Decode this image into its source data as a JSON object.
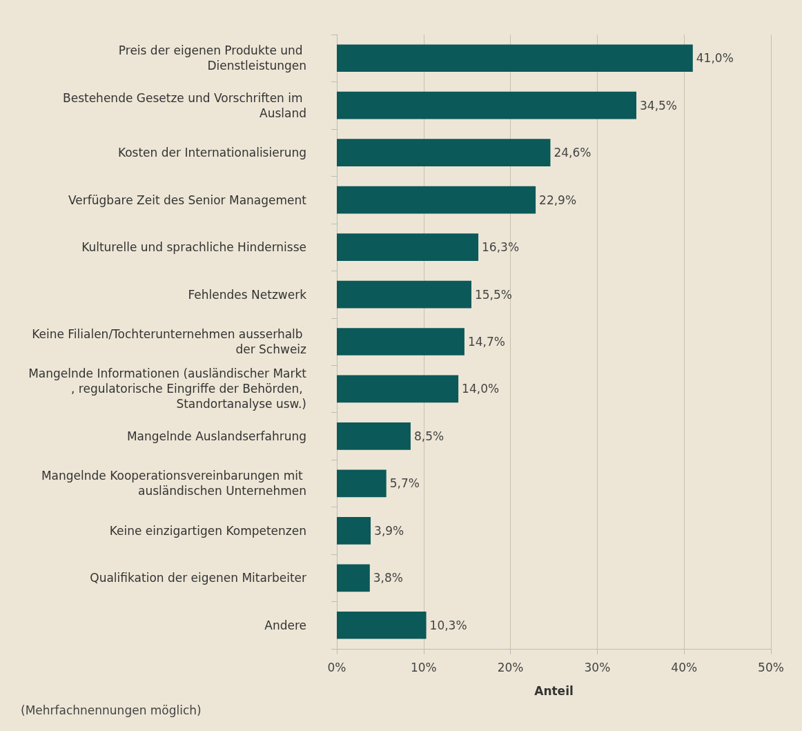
{
  "chart_data": {
    "type": "bar",
    "orientation": "horizontal",
    "xlabel": "Anteil",
    "annotations": [
      "(Mehrfachnennungen möglich)"
    ],
    "categories": [
      "Preis der eigenen Produkte und Dienstleistungen",
      "Bestehende Gesetze und Vorschriften im Ausland",
      "Kosten der Internationalisierung",
      "Verfügbare Zeit des Senior Management",
      "Kulturelle und sprachliche Hindernisse",
      "Fehlendes Netzwerk",
      "Keine Filialen/Tochterunternehmen ausserhalb der Schweiz",
      "Mangelnde Informationen (ausländischer Markt, regulatorische Eingriffe der Behörden, Standortanalyse usw.)",
      "Mangelnde Auslandserfahrung",
      "Mangelnde Kooperationsvereinbarungen mit ausländischen Unternehmen",
      "Keine einzigartigen Kompetenzen",
      "Qualifikation der eigenen Mitarbeiter",
      "Andere"
    ],
    "values": [
      41.0,
      34.5,
      24.6,
      22.9,
      16.3,
      15.5,
      14.7,
      14.0,
      8.5,
      5.7,
      3.9,
      3.8,
      10.3
    ],
    "value_labels": [
      "41,0%",
      "34,5%",
      "24,6%",
      "22,9%",
      "16,3%",
      "15,5%",
      "14,7%",
      "14,0%",
      "8,5%",
      "5,7%",
      "3,9%",
      "3,8%",
      "10,3%"
    ],
    "color": "#0b5959",
    "xlim": [
      0,
      50
    ],
    "xticks": [
      {
        "value": 0,
        "label": "0%"
      },
      {
        "value": 10,
        "label": "10%"
      },
      {
        "value": 20,
        "label": "20%"
      },
      {
        "value": 30,
        "label": "30%"
      },
      {
        "value": 40,
        "label": "40%"
      },
      {
        "value": 50,
        "label": "50%"
      }
    ],
    "grid": "x"
  }
}
